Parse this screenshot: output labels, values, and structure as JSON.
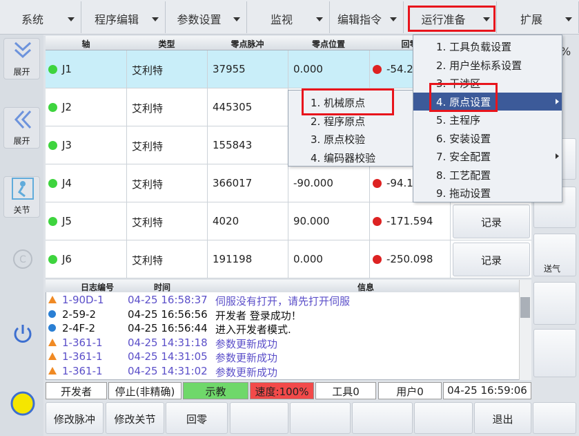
{
  "menu_bar": {
    "items": [
      "系统",
      "程序编辑",
      "参数设置",
      "监视",
      "编辑指令",
      "运行准备",
      "扩展"
    ],
    "active": 5
  },
  "sidebar": {
    "buttons": [
      "展开",
      "展开",
      "关节"
    ]
  },
  "axis_table": {
    "headers": [
      "轴",
      "类型",
      "零点脉冲",
      "零点位置",
      "回零"
    ],
    "rows": [
      [
        "J1",
        "艾利特",
        "37955",
        "0.000",
        "-54.2"
      ],
      [
        "J2",
        "艾利特",
        "445305"
      ],
      [
        "J3",
        "艾利特",
        "155843"
      ],
      [
        "J4",
        "艾利特",
        "366017",
        "-90.000",
        "-94.1"
      ],
      [
        "J5",
        "艾利特",
        "4020",
        "90.000",
        "-171.594",
        "记录"
      ],
      [
        "J6",
        "艾利特",
        "191198",
        "0.000",
        "-250.098",
        "记录"
      ]
    ],
    "selected": 0
  },
  "right_panel": {
    "labels": [
      "%",
      "送气"
    ]
  },
  "log": {
    "headers": [
      "日志编号",
      "时间",
      "信息"
    ],
    "rows": [
      {
        "level": "warning",
        "cells": [
          "1-90D-1",
          "04-25 16:58:37",
          "伺服没有打开，请先打开伺服"
        ]
      },
      {
        "level": "info",
        "cells": [
          "2-59-2",
          "04-25 16:56:56",
          "开发者 登录成功！"
        ]
      },
      {
        "level": "info",
        "cells": [
          "2-4F-2",
          "04-25 16:56:44",
          "进入开发者模式."
        ]
      },
      {
        "level": "warning",
        "cells": [
          "1-361-1",
          "04-25 14:31:18",
          "参数更新成功"
        ]
      },
      {
        "level": "warning",
        "cells": [
          "1-361-1",
          "04-25 14:31:05",
          "参数更新成功"
        ]
      },
      {
        "level": "warning",
        "cells": [
          "1-361-1",
          "04-25 14:31:02",
          "参数更新成功"
        ]
      }
    ]
  },
  "status_bar": [
    "开发者",
    "停止(非精确)",
    "示教",
    "速度:100%",
    "工具0",
    "用户0",
    "04-25 16:59:06"
  ],
  "bottom_buttons": [
    "修改脉冲",
    "修改关节",
    "回零",
    "退出"
  ],
  "dropdown": {
    "items": [
      "1.  工具负载设置",
      "2.  用户坐标系设置",
      "3.  干涉区",
      "4.  原点设置",
      "5.  主程序",
      "6.  安装设置",
      "7.  安全配置",
      "8.  工艺配置",
      "9.  拖动设置"
    ],
    "highlighted": 3
  },
  "submenu": {
    "items": [
      "1.  机械原点",
      "2.  程序原点",
      "3.  原点校验",
      "4.  编码器校验"
    ]
  }
}
